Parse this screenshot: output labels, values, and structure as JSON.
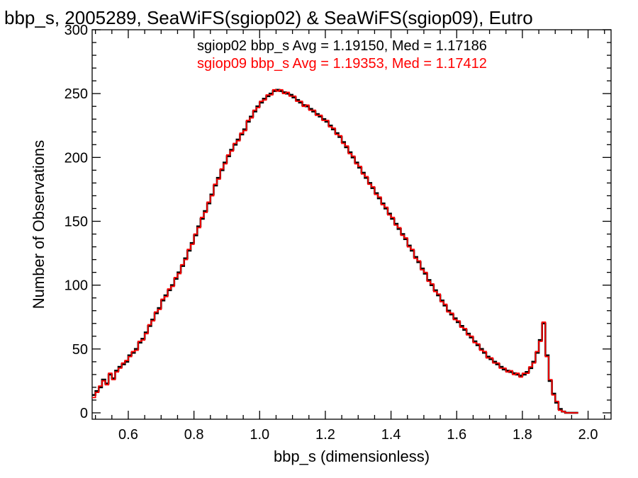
{
  "chart_data": {
    "type": "step-histogram",
    "title": "bbp_s, 2005289, SeaWiFS(sgiop02) & SeaWiFS(sgiop09), Eutro",
    "xlabel": "bbp_s (dimensionless)",
    "ylabel": "Number of Observations",
    "xlim": [
      0.49,
      2.07
    ],
    "ylim": [
      -5,
      300
    ],
    "xticks": [
      "0.6",
      "0.8",
      "1.0",
      "1.2",
      "1.4",
      "1.6",
      "1.8",
      "2.0"
    ],
    "yticks": [
      "0",
      "50",
      "100",
      "150",
      "200",
      "250",
      "300"
    ],
    "grid": false,
    "annotations": [
      {
        "text": "sgiop02 bbp_s Avg = 1.19150, Med = 1.17186",
        "color": "#000000"
      },
      {
        "text": "sgiop09 bbp_s Avg = 1.19353, Med = 1.17412",
        "color": "#ff0000"
      }
    ],
    "bin_width": 0.01,
    "x": [
      0.49,
      0.5,
      0.51,
      0.52,
      0.53,
      0.54,
      0.55,
      0.56,
      0.57,
      0.58,
      0.59,
      0.6,
      0.61,
      0.62,
      0.63,
      0.64,
      0.65,
      0.66,
      0.67,
      0.68,
      0.69,
      0.7,
      0.71,
      0.72,
      0.73,
      0.74,
      0.75,
      0.76,
      0.77,
      0.78,
      0.79,
      0.8,
      0.81,
      0.82,
      0.83,
      0.84,
      0.85,
      0.86,
      0.87,
      0.88,
      0.89,
      0.9,
      0.91,
      0.92,
      0.93,
      0.94,
      0.95,
      0.96,
      0.97,
      0.98,
      0.99,
      1.0,
      1.01,
      1.02,
      1.03,
      1.04,
      1.05,
      1.06,
      1.07,
      1.08,
      1.09,
      1.1,
      1.11,
      1.12,
      1.13,
      1.14,
      1.15,
      1.16,
      1.17,
      1.18,
      1.19,
      1.2,
      1.21,
      1.22,
      1.23,
      1.24,
      1.25,
      1.26,
      1.27,
      1.28,
      1.29,
      1.3,
      1.31,
      1.32,
      1.33,
      1.34,
      1.35,
      1.36,
      1.37,
      1.38,
      1.39,
      1.4,
      1.41,
      1.42,
      1.43,
      1.44,
      1.45,
      1.46,
      1.47,
      1.48,
      1.49,
      1.5,
      1.51,
      1.52,
      1.53,
      1.54,
      1.55,
      1.56,
      1.57,
      1.58,
      1.59,
      1.6,
      1.61,
      1.62,
      1.63,
      1.64,
      1.65,
      1.66,
      1.67,
      1.68,
      1.69,
      1.7,
      1.71,
      1.72,
      1.73,
      1.74,
      1.75,
      1.76,
      1.77,
      1.78,
      1.79,
      1.8,
      1.81,
      1.82,
      1.83,
      1.84,
      1.85,
      1.86,
      1.87,
      1.88,
      1.89,
      1.9,
      1.91,
      1.92,
      1.93,
      1.94,
      1.95,
      1.96,
      1.97,
      1.98,
      1.99,
      2.0,
      2.01,
      2.02,
      2.03,
      2.04,
      2.05,
      2.06
    ],
    "series": [
      {
        "name": "sgiop02",
        "color": "#000000",
        "values": [
          14,
          17,
          20,
          26,
          23,
          30,
          27,
          33,
          36,
          38,
          40,
          45,
          47,
          50,
          55,
          58,
          63,
          68,
          73,
          78,
          82,
          88,
          92,
          96,
          100,
          105,
          110,
          115,
          121,
          127,
          133,
          139,
          146,
          152,
          158,
          164,
          171,
          178,
          184,
          190,
          196,
          201,
          206,
          210,
          214,
          218,
          222,
          228,
          232,
          236,
          240,
          243,
          246,
          248,
          250,
          252,
          253,
          252,
          251,
          250,
          249,
          247,
          245,
          243,
          241,
          240,
          238,
          236,
          234,
          232,
          230,
          228,
          225,
          222,
          219,
          216,
          212,
          208,
          204,
          200,
          196,
          192,
          188,
          184,
          180,
          176,
          172,
          168,
          164,
          160,
          156,
          152,
          148,
          144,
          140,
          136,
          131,
          127,
          122,
          118,
          113,
          109,
          104,
          100,
          96,
          92,
          88,
          84,
          80,
          77,
          74,
          71,
          68,
          65,
          62,
          59,
          56,
          53,
          50,
          47,
          44,
          42,
          40,
          38,
          36,
          34,
          33,
          32,
          31,
          30,
          29,
          30,
          32,
          35,
          40,
          47,
          57,
          70,
          45,
          25,
          15,
          8,
          3,
          1,
          0,
          0,
          0,
          0
        ]
      },
      {
        "name": "sgiop09",
        "color": "#ff0000",
        "values": [
          12,
          16,
          21,
          25,
          22,
          31,
          26,
          32,
          35,
          39,
          41,
          44,
          48,
          49,
          56,
          57,
          62,
          69,
          72,
          79,
          81,
          89,
          91,
          97,
          99,
          106,
          109,
          116,
          120,
          128,
          132,
          140,
          145,
          153,
          157,
          165,
          170,
          179,
          183,
          191,
          195,
          202,
          205,
          211,
          213,
          219,
          221,
          229,
          231,
          237,
          239,
          244,
          245,
          249,
          249,
          253,
          252,
          253,
          250,
          251,
          248,
          248,
          244,
          244,
          240,
          241,
          237,
          237,
          233,
          233,
          229,
          229,
          224,
          223,
          218,
          217,
          211,
          209,
          203,
          201,
          195,
          193,
          187,
          185,
          179,
          177,
          171,
          169,
          163,
          161,
          155,
          153,
          147,
          145,
          139,
          137,
          130,
          128,
          121,
          119,
          112,
          110,
          103,
          101,
          95,
          93,
          87,
          85,
          79,
          78,
          73,
          72,
          67,
          66,
          61,
          60,
          55,
          54,
          49,
          48,
          43,
          43,
          39,
          39,
          35,
          35,
          32,
          33,
          30,
          31,
          28,
          31,
          31,
          36,
          39,
          48,
          56,
          71,
          44,
          26,
          14,
          9,
          2,
          1,
          0,
          0,
          0,
          0
        ]
      }
    ]
  }
}
